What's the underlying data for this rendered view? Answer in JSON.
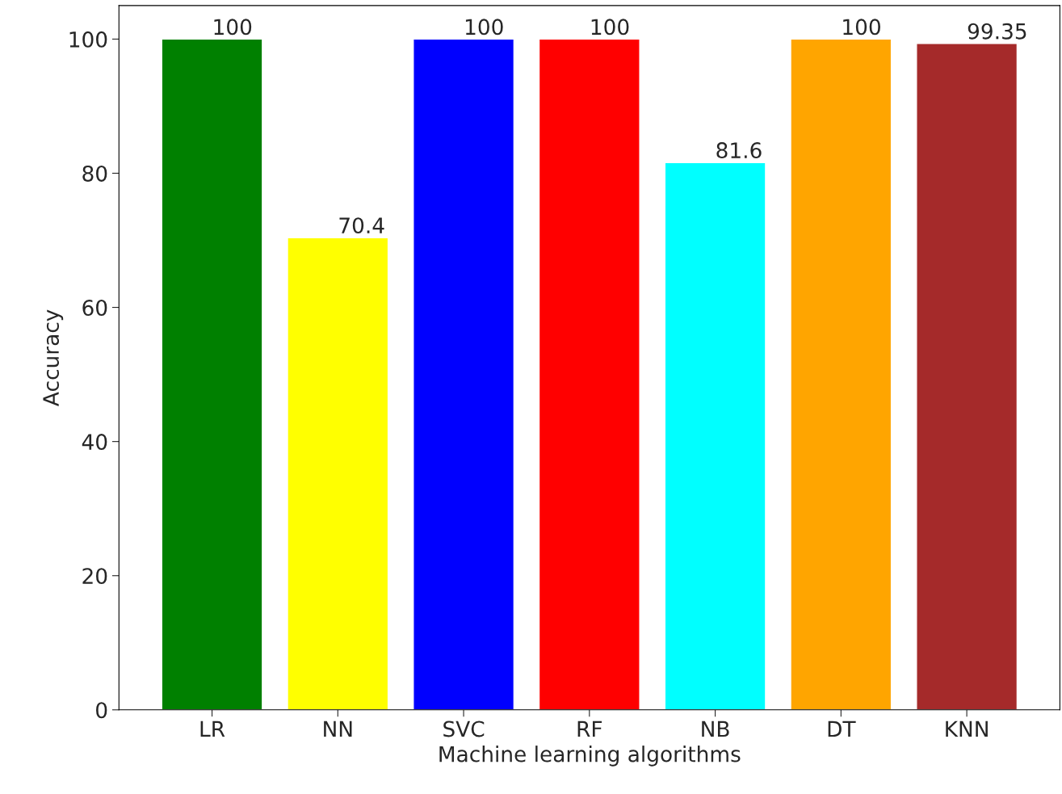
{
  "chart_data": {
    "type": "bar",
    "xlabel": "Machine learning algorithms",
    "ylabel": "Accuracy",
    "categories": [
      "LR",
      "NN",
      "SVC",
      "RF",
      "NB",
      "DT",
      "KNN"
    ],
    "values": [
      100,
      70.4,
      100,
      100,
      81.6,
      100,
      99.35
    ],
    "colors": [
      "#008000",
      "#ffff00",
      "#0000ff",
      "#ff0000",
      "#00ffff",
      "#ffa500",
      "#a52a2a"
    ],
    "value_labels": [
      "100",
      "70.4",
      "100",
      "100",
      "81.6",
      "100",
      "99.35"
    ],
    "ylim": [
      0,
      105
    ],
    "yticks": [
      0,
      20,
      40,
      60,
      80,
      100
    ],
    "grid": false,
    "legend": false
  }
}
